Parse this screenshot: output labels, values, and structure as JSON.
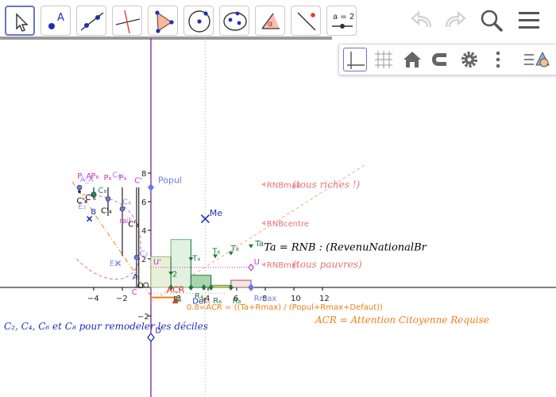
{
  "toolbar": {
    "tools": [
      {
        "name": "move-tool",
        "active": true
      },
      {
        "name": "point-tool",
        "glyph": "A"
      },
      {
        "name": "line-tool"
      },
      {
        "name": "perpendicular-line-tool"
      },
      {
        "name": "polygon-tool"
      },
      {
        "name": "circle-center-point-tool"
      },
      {
        "name": "ellipse-tool"
      },
      {
        "name": "angle-tool",
        "glyph": "α"
      },
      {
        "name": "reflect-tool"
      },
      {
        "name": "slider-tool",
        "glyph": "a = 2"
      }
    ],
    "undo_icon": "undo-icon",
    "redo_icon": "redo-icon",
    "search_icon": "search-icon",
    "menu_icon": "hamburger-menu-icon"
  },
  "style_bar": {
    "buttons": [
      "axes-toggle",
      "grid-toggle",
      "home-view",
      "point-capturing",
      "graphics-settings",
      "more-options",
      "style-bar-toggle"
    ]
  },
  "axes": {
    "x_ticks": [
      "−4",
      "−2",
      "2",
      "4",
      "6",
      "8",
      "10",
      "12"
    ],
    "y_ticks": [
      "8",
      "6",
      "4",
      "2",
      "−2"
    ],
    "x_range": [
      -5.1,
      14.2
    ],
    "y_range": [
      -3.6,
      8.5
    ]
  },
  "labels": {
    "popul": "Popul",
    "me": "Me",
    "rnbmax": "RNBmax",
    "rnbcentre": "RNBcentre",
    "rnbmin": "RNBmin",
    "tous_riches": "(tous riches !)",
    "tous_pauvres": "(tous pauvres)",
    "ta": "Ta",
    "ta_formula": "Ta = RNB : (RevenuNationalBr",
    "u": "U",
    "u_prime": "U'",
    "rmax": "Rmax",
    "acr": "ACR",
    "def": "Def",
    "formula": "0.8=ACR =  ((Ta+Rmax) / (Popul+Rmax+Defaut))",
    "acr_def": "ACR = Attention Citoyenne Requise",
    "note": "C₂, C₄, C₆ et C₈ pour remodeler les déciles",
    "a": "A",
    "b": "B",
    "c": "C",
    "c_prime": "C'",
    "d": "D",
    "o": "O",
    "e1": "E₁",
    "e2": "E₂",
    "rail": "rail",
    "p_a": "P_A",
    "a_a": "A_A",
    "p8": "P₈",
    "p6": "P₆",
    "p4": "P₄",
    "c2": "C₂",
    "c4": "C₄",
    "c6": "C₆",
    "c8": "C₈",
    "c_prime2": "C'₂",
    "c_prime4": "C'₄",
    "c_prime6": "C'₆",
    "c_prime8": "C'₈",
    "t4": "T₄",
    "t6": "T₆",
    "t8": "T₈",
    "t2": "2",
    "r2": "R₂",
    "r4": "R₄",
    "r5": "R₅",
    "r6": "R₆",
    "r8": "R₈"
  },
  "colors": {
    "axis": "#000000",
    "popul_axis": "#7b1fa2",
    "blue_point": "#6c78e6",
    "dark_blue": "#1f2fb5",
    "green_rect": "#2e7d32",
    "orange": "#f07f16",
    "pink": "#e36aa8",
    "rnb_text": "#e57373",
    "magenta": "#cc33cc"
  }
}
